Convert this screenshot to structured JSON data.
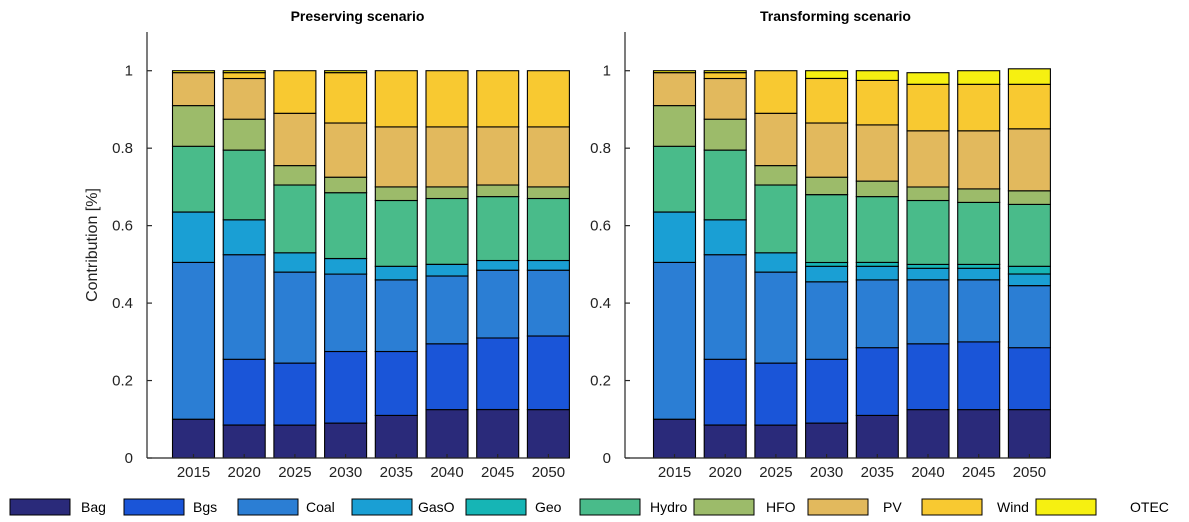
{
  "chart_data": [
    {
      "type": "bar",
      "stacked": true,
      "title": "Preserving scenario",
      "ylabel": "Contribution [%]",
      "xlabel": "",
      "ylim": [
        0,
        1.1
      ],
      "yticks": [
        0,
        0.2,
        0.4,
        0.6,
        0.8,
        1
      ],
      "ytick_labels": [
        "0",
        "0.2",
        "0.4",
        "0.6",
        "0.8",
        "1"
      ],
      "grid": false,
      "categories": [
        "2015",
        "2020",
        "2025",
        "2030",
        "2035",
        "2040",
        "2045",
        "2050"
      ],
      "series": [
        {
          "name": "Bag",
          "values": [
            0.1,
            0.085,
            0.085,
            0.09,
            0.11,
            0.125,
            0.125,
            0.125
          ]
        },
        {
          "name": "Bgs",
          "values": [
            0.0,
            0.17,
            0.16,
            0.185,
            0.165,
            0.17,
            0.185,
            0.19
          ]
        },
        {
          "name": "Coal",
          "values": [
            0.405,
            0.27,
            0.235,
            0.2,
            0.185,
            0.175,
            0.175,
            0.17
          ]
        },
        {
          "name": "GasO",
          "values": [
            0.13,
            0.09,
            0.05,
            0.04,
            0.035,
            0.03,
            0.025,
            0.025
          ]
        },
        {
          "name": "Geo",
          "values": [
            0.0,
            0.0,
            0.0,
            0.0,
            0.0,
            0.0,
            0.0,
            0.0
          ]
        },
        {
          "name": "Hydro",
          "values": [
            0.17,
            0.18,
            0.175,
            0.17,
            0.17,
            0.17,
            0.165,
            0.16
          ]
        },
        {
          "name": "HFO",
          "values": [
            0.105,
            0.08,
            0.05,
            0.04,
            0.035,
            0.03,
            0.03,
            0.03
          ]
        },
        {
          "name": "PV",
          "values": [
            0.085,
            0.105,
            0.135,
            0.14,
            0.155,
            0.155,
            0.15,
            0.155
          ]
        },
        {
          "name": "Wind",
          "values": [
            0.0,
            0.015,
            0.11,
            0.13,
            0.145,
            0.145,
            0.145,
            0.145
          ]
        },
        {
          "name": "OTEC",
          "values": [
            0.005,
            0.005,
            0.0,
            0.005,
            0.0,
            0.0,
            0.0,
            0.0
          ]
        }
      ]
    },
    {
      "type": "bar",
      "stacked": true,
      "title": "Transforming scenario",
      "ylabel": "",
      "xlabel": "",
      "ylim": [
        0,
        1.1
      ],
      "yticks": [
        0,
        0.2,
        0.4,
        0.6,
        0.8,
        1
      ],
      "ytick_labels": [
        "0",
        "0.2",
        "0.4",
        "0.6",
        "0.8",
        "1"
      ],
      "grid": false,
      "categories": [
        "2015",
        "2020",
        "2025",
        "2030",
        "2035",
        "2040",
        "2045",
        "2050"
      ],
      "series": [
        {
          "name": "Bag",
          "values": [
            0.1,
            0.085,
            0.085,
            0.09,
            0.11,
            0.125,
            0.125,
            0.125
          ]
        },
        {
          "name": "Bgs",
          "values": [
            0.0,
            0.17,
            0.16,
            0.165,
            0.175,
            0.17,
            0.175,
            0.16
          ]
        },
        {
          "name": "Coal",
          "values": [
            0.405,
            0.27,
            0.235,
            0.2,
            0.175,
            0.165,
            0.16,
            0.16
          ]
        },
        {
          "name": "GasO",
          "values": [
            0.13,
            0.09,
            0.05,
            0.04,
            0.035,
            0.03,
            0.03,
            0.03
          ]
        },
        {
          "name": "Geo",
          "values": [
            0.0,
            0.0,
            0.0,
            0.01,
            0.01,
            0.01,
            0.01,
            0.02
          ]
        },
        {
          "name": "Hydro",
          "values": [
            0.17,
            0.18,
            0.175,
            0.175,
            0.17,
            0.165,
            0.16,
            0.16
          ]
        },
        {
          "name": "HFO",
          "values": [
            0.105,
            0.08,
            0.05,
            0.045,
            0.04,
            0.035,
            0.035,
            0.035
          ]
        },
        {
          "name": "PV",
          "values": [
            0.085,
            0.105,
            0.135,
            0.14,
            0.145,
            0.145,
            0.15,
            0.16
          ]
        },
        {
          "name": "Wind",
          "values": [
            0.0,
            0.015,
            0.11,
            0.115,
            0.115,
            0.12,
            0.12,
            0.115
          ]
        },
        {
          "name": "OTEC",
          "values": [
            0.005,
            0.005,
            0.0,
            0.02,
            0.025,
            0.03,
            0.035,
            0.04
          ]
        }
      ]
    }
  ],
  "legend": {
    "placement": "bottom",
    "items": [
      {
        "name": "Bag",
        "color": "#2a2a7a"
      },
      {
        "name": "Bgs",
        "color": "#1a55d8"
      },
      {
        "name": "Coal",
        "color": "#2b7ed4"
      },
      {
        "name": "GasO",
        "color": "#1a9fd4"
      },
      {
        "name": "Geo",
        "color": "#16b5b5"
      },
      {
        "name": "Hydro",
        "color": "#49bb8a"
      },
      {
        "name": "HFO",
        "color": "#9cbb6a"
      },
      {
        "name": "PV",
        "color": "#e2b95d"
      },
      {
        "name": "Wind",
        "color": "#f8c931"
      },
      {
        "name": "OTEC",
        "color": "#f6f011"
      }
    ]
  }
}
